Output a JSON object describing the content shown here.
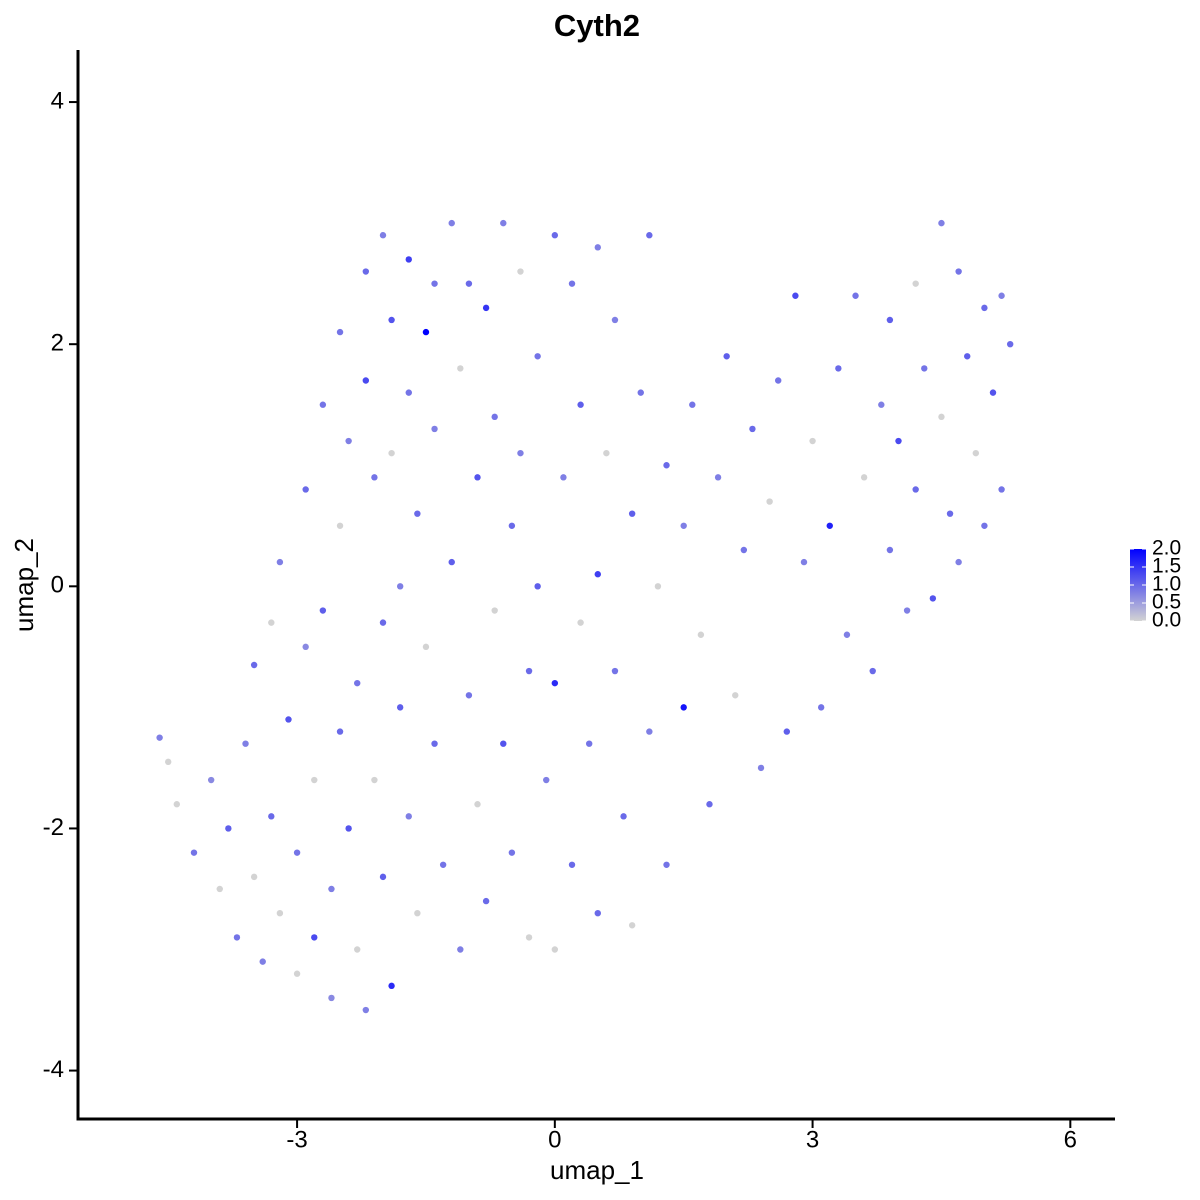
{
  "chart_data": {
    "type": "scatter",
    "title": "Cyth2",
    "x_label": "umap_1",
    "y_label": "umap_2",
    "xlim": [
      -5.55,
      6.52
    ],
    "ylim": [
      -4.4,
      4.43
    ],
    "xticks": [
      -3,
      0,
      3,
      6
    ],
    "yticks": [
      -4,
      -2,
      0,
      2,
      4
    ],
    "low_color": "#d3d3d3",
    "high_color": "#0000ff",
    "colorbar": {
      "lim": [
        0,
        2
      ],
      "ticks": [
        {
          "value": 0,
          "label": "0.0"
        },
        {
          "value": 0.5,
          "label": "0.5"
        },
        {
          "value": 1,
          "label": "1.0"
        },
        {
          "value": 1.5,
          "label": "1.5"
        },
        {
          "value": 2,
          "label": "2.0"
        }
      ]
    },
    "x": [
      -4.6,
      -4.5,
      -4.4,
      -4.2,
      -4.0,
      -3.9,
      -3.8,
      -3.7,
      -3.6,
      -3.5,
      -3.5,
      -3.4,
      -3.3,
      -3.3,
      -3.2,
      -3.2,
      -3.1,
      -3.0,
      -3.0,
      -2.9,
      -2.9,
      -2.8,
      -2.8,
      -2.7,
      -2.7,
      -2.6,
      -2.6,
      -2.5,
      -2.5,
      -2.5,
      -2.4,
      -2.4,
      -2.3,
      -2.3,
      -2.2,
      -2.2,
      -2.2,
      -2.1,
      -2.1,
      -2.0,
      -2.0,
      -2.0,
      -1.9,
      -1.9,
      -1.9,
      -1.8,
      -1.8,
      -1.7,
      -1.7,
      -1.7,
      -1.6,
      -1.6,
      -1.5,
      -1.5,
      -1.4,
      -1.4,
      -1.4,
      -1.3,
      -1.2,
      -1.2,
      -1.1,
      -1.1,
      -1.0,
      -1.0,
      -0.9,
      -0.9,
      -0.8,
      -0.8,
      -0.7,
      -0.7,
      -0.6,
      -0.6,
      -0.5,
      -0.5,
      -0.4,
      -0.4,
      -0.3,
      -0.3,
      -0.2,
      -0.2,
      -0.1,
      0.0,
      0.0,
      0.0,
      0.1,
      0.2,
      0.2,
      0.3,
      0.3,
      0.4,
      0.5,
      0.5,
      0.5,
      0.6,
      0.7,
      0.7,
      0.8,
      0.9,
      0.9,
      1.0,
      1.1,
      1.1,
      1.2,
      1.3,
      1.3,
      1.5,
      1.5,
      1.6,
      1.7,
      1.8,
      1.9,
      2.0,
      2.1,
      2.2,
      2.3,
      2.4,
      2.5,
      2.6,
      2.7,
      2.8,
      2.9,
      3.0,
      3.1,
      3.2,
      3.3,
      3.4,
      3.5,
      3.6,
      3.7,
      3.8,
      3.9,
      3.9,
      4.0,
      4.1,
      4.2,
      4.2,
      4.3,
      4.4,
      4.5,
      4.5,
      4.6,
      4.7,
      4.7,
      4.8,
      4.9,
      5.0,
      5.0,
      5.1,
      5.2,
      5.2,
      5.3
    ],
    "y": [
      -1.25,
      -1.45,
      -1.8,
      -2.2,
      -1.6,
      -2.5,
      -2.0,
      -2.9,
      -1.3,
      -2.4,
      -0.65,
      -3.1,
      -1.9,
      -0.3,
      -2.7,
      0.2,
      -1.1,
      -2.2,
      -3.2,
      0.8,
      -0.5,
      -1.6,
      -2.9,
      1.5,
      -0.2,
      -2.5,
      -3.4,
      2.1,
      0.5,
      -1.2,
      1.2,
      -2.0,
      -0.8,
      -3.0,
      2.6,
      1.7,
      -3.5,
      0.9,
      -1.6,
      2.9,
      -0.3,
      -2.4,
      2.2,
      1.1,
      -3.3,
      0.0,
      -1.0,
      2.7,
      1.6,
      -1.9,
      0.6,
      -2.7,
      2.1,
      -0.5,
      2.5,
      1.3,
      -1.3,
      -2.3,
      3.0,
      0.2,
      1.8,
      -3.0,
      2.5,
      -0.9,
      0.9,
      -1.8,
      2.3,
      -2.6,
      1.4,
      -0.2,
      3.0,
      -1.3,
      0.5,
      -2.2,
      2.6,
      1.1,
      -0.7,
      -2.9,
      1.9,
      0.0,
      -1.6,
      2.9,
      -0.8,
      -3.0,
      0.9,
      2.5,
      -2.3,
      -0.3,
      1.5,
      -1.3,
      2.8,
      0.1,
      -2.7,
      1.1,
      -0.7,
      2.2,
      -1.9,
      0.6,
      -2.8,
      1.6,
      -1.2,
      2.9,
      0.0,
      -2.3,
      1.0,
      -1.0,
      0.5,
      1.5,
      -0.4,
      -1.8,
      0.9,
      1.9,
      -0.9,
      0.3,
      1.3,
      -1.5,
      0.7,
      1.7,
      -1.2,
      2.4,
      0.2,
      1.2,
      -1.0,
      0.5,
      1.8,
      -0.4,
      2.4,
      0.9,
      -0.7,
      1.5,
      2.2,
      0.3,
      1.2,
      -0.2,
      2.5,
      0.8,
      1.8,
      -0.1,
      3.0,
      1.4,
      0.6,
      2.6,
      0.2,
      1.9,
      1.1,
      2.3,
      0.5,
      1.6,
      2.4,
      0.8,
      2.0
    ],
    "values": [
      0.8,
      0,
      0,
      0.9,
      0.7,
      0,
      1.1,
      0.9,
      0.8,
      0,
      1.0,
      0.8,
      1.0,
      0,
      0,
      0.8,
      1.2,
      0.9,
      0,
      1.0,
      0.7,
      0,
      1.3,
      0.9,
      1.1,
      0.8,
      0.7,
      0.9,
      0,
      1.0,
      0.8,
      1.2,
      0.9,
      0,
      1.0,
      1.3,
      0.8,
      0.9,
      0,
      0.8,
      1.0,
      1.1,
      1.2,
      0,
      1.6,
      0.8,
      1.1,
      1.4,
      0.9,
      0.8,
      1.0,
      0,
      2.0,
      0,
      0.9,
      0.8,
      1.0,
      0.9,
      0.8,
      1.1,
      0,
      0.8,
      1.0,
      0.9,
      1.2,
      0,
      1.5,
      1.0,
      0.9,
      0,
      0.8,
      1.2,
      1.0,
      0.9,
      0,
      0.8,
      1.0,
      0,
      0.9,
      1.1,
      0.8,
      1.0,
      1.6,
      0,
      0.8,
      0.9,
      1.0,
      0,
      1.1,
      0.9,
      0.8,
      1.4,
      1.0,
      0,
      0.9,
      0.8,
      1.0,
      1.1,
      0,
      0.9,
      0.8,
      1.0,
      0,
      0.9,
      1.0,
      1.8,
      0.8,
      0.9,
      0,
      1.0,
      0.8,
      1.1,
      0,
      0.9,
      1.0,
      0.8,
      0,
      0.9,
      1.1,
      1.3,
      0.8,
      0,
      0.9,
      1.7,
      1.0,
      0.8,
      0.9,
      0,
      1.0,
      0.8,
      1.1,
      0.9,
      1.3,
      0.8,
      0,
      1.0,
      0.9,
      1.2,
      0.8,
      0,
      1.0,
      0.9,
      0.8,
      1.1,
      0,
      1.0,
      0.9,
      1.2,
      0.8,
      0.9,
      1.0
    ]
  }
}
